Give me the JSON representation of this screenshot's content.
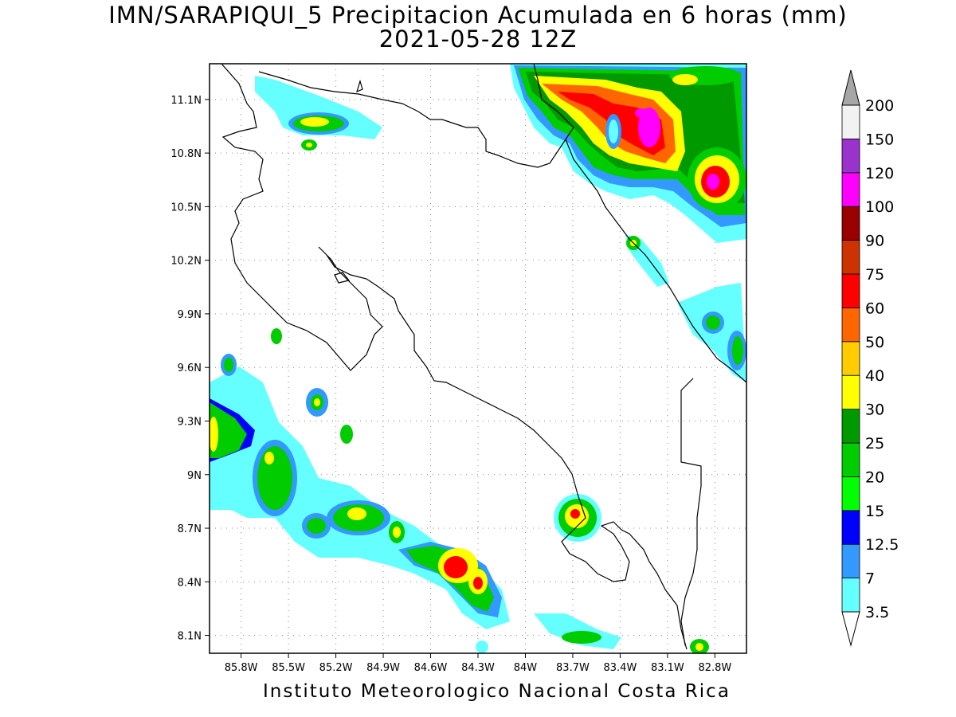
{
  "title": {
    "line1": "IMN/SARAPIQUI_5 Precipitacion Acumulada en 6 horas (mm)",
    "line2": "2021-05-28 12Z"
  },
  "footer": "Instituto Meteorologico Nacional Costa Rica",
  "map": {
    "lon_range": [
      -86.0,
      -82.6
    ],
    "lat_range": [
      8.0,
      11.3
    ],
    "lon_ticks": [
      "85.8W",
      "85.5W",
      "85.2W",
      "84.9W",
      "84.6W",
      "84.3W",
      "84W",
      "83.7W",
      "83.4W",
      "83.1W",
      "82.8W"
    ],
    "lat_ticks": [
      "11.1N",
      "10.8N",
      "10.5N",
      "10.2N",
      "9.9N",
      "9.6N",
      "9.3N",
      "9N",
      "8.7N",
      "8.4N",
      "8.1N"
    ],
    "grid": "dotted"
  },
  "legend": {
    "thresholds": [
      "3.5",
      "7",
      "12.5",
      "15",
      "20",
      "25",
      "30",
      "40",
      "50",
      "60",
      "75",
      "90",
      "100",
      "120",
      "150",
      "200"
    ],
    "colors": [
      "#66ffff",
      "#3399ff",
      "#0000ff",
      "#00ff00",
      "#00cc00",
      "#009900",
      "#ffff00",
      "#ffcc00",
      "#ff6600",
      "#ff0000",
      "#cc3300",
      "#990000",
      "#ff00ff",
      "#9933cc",
      "#f2f2f2",
      "#a6a6a6"
    ]
  }
}
